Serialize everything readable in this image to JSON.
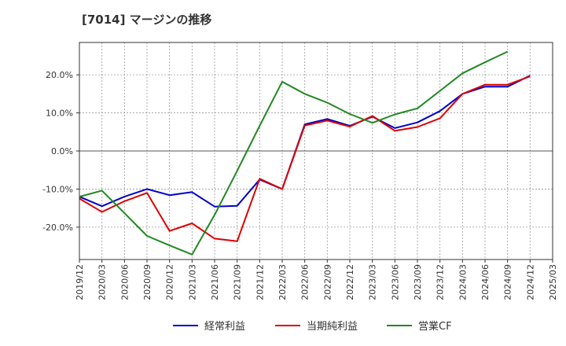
{
  "chart_data": {
    "type": "line",
    "title": "[7014]  マージンの推移",
    "x": [
      "2019/12",
      "2020/03",
      "2020/06",
      "2020/09",
      "2020/12",
      "2021/03",
      "2021/06",
      "2021/09",
      "2021/12",
      "2022/03",
      "2022/06",
      "2022/09",
      "2022/12",
      "2023/03",
      "2023/06",
      "2023/09",
      "2023/12",
      "2024/03",
      "2024/06",
      "2024/09",
      "2024/12",
      "2025/03"
    ],
    "ylim": [
      -28.5,
      28.5
    ],
    "y_ticks": [
      20,
      10,
      0,
      -10,
      -20
    ],
    "y_tick_labels": [
      "20.0%",
      "10.0%",
      "0.0%",
      "-10.0%",
      "-20.0%"
    ],
    "grid": true,
    "legend_position": "bottom",
    "series": [
      {
        "name": "経常利益",
        "color": "#0000cc",
        "values": [
          -12.0,
          -14.5,
          -12.0,
          -10.0,
          -11.6,
          -10.8,
          -14.6,
          -14.4,
          -7.5,
          -10.0,
          7.0,
          8.4,
          6.6,
          9.0,
          6.0,
          7.5,
          10.5,
          15.0,
          16.9,
          16.9,
          19.8,
          null
        ]
      },
      {
        "name": "当期純利益",
        "color": "#dd0000",
        "values": [
          -12.5,
          -16.0,
          -13.2,
          -11.0,
          -21.0,
          -19.0,
          -23.0,
          -23.7,
          -7.3,
          -10.0,
          6.7,
          8.0,
          6.4,
          9.2,
          5.3,
          6.3,
          8.6,
          15.0,
          17.4,
          17.4,
          19.6,
          null
        ]
      },
      {
        "name": "営業CF",
        "color": "#228822",
        "values": [
          -12.0,
          -10.4,
          -16.3,
          -22.3,
          -24.8,
          -27.2,
          -16.8,
          -5.2,
          6.6,
          18.2,
          15.0,
          12.7,
          9.7,
          7.4,
          9.6,
          11.2,
          15.8,
          20.4,
          23.3,
          26.1,
          null,
          null
        ]
      }
    ]
  }
}
